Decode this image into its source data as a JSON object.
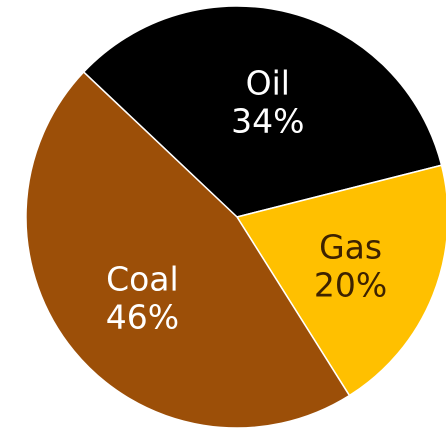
{
  "chart_data": {
    "type": "pie",
    "slices": [
      {
        "label": "Oil",
        "value": 34,
        "percent_label": "34%",
        "color": "#000000",
        "text_color": "#ffffff"
      },
      {
        "label": "Gas",
        "value": 20,
        "percent_label": "20%",
        "color": "#ffc000",
        "text_color": "#3d2200"
      },
      {
        "label": "Coal",
        "value": 46,
        "percent_label": "46%",
        "color": "#9c4f08",
        "text_color": "#ffffff"
      }
    ],
    "start_angle_deg": -46.6,
    "direction": "clockwise",
    "edge_color": "#ffffff"
  }
}
